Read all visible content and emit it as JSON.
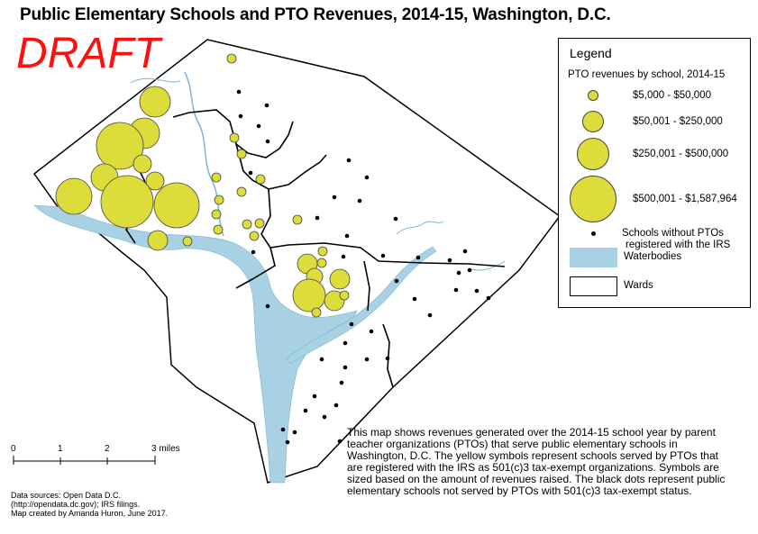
{
  "title": "Public Elementary Schools and PTO Revenues, 2014-15, Washington, D.C.",
  "draft": "DRAFT",
  "legend": {
    "title": "Legend",
    "subtitle": "PTO revenues by school, 2014-15",
    "classes": [
      {
        "label": "$5,000 - $50,000"
      },
      {
        "label": "$50,001 - $250,000"
      },
      {
        "label": "$250,001 - $500,000"
      },
      {
        "label": "$500,001 - $1,587,964"
      }
    ],
    "no_pto_label_1": "Schools without PTOs",
    "no_pto_label_2": "registered with the IRS",
    "water_label": "Waterbodies",
    "wards_label": "Wards"
  },
  "scale_bar": {
    "labels": [
      "0",
      "1",
      "2",
      "3 miles"
    ]
  },
  "description": "This map shows revenues generated over the 2014-15 school year by parent teacher organizations (PTOs) that serve public elementary schools in Washington, D.C. The yellow symbols represent schools served by PTOs that are registered with the IRS as 501(c)3 tax-exempt organizations. Symbols are sized based on the amount of revenues raised. The black dots represent public elementary schools not served by PTOs with 501(c)3 tax-exempt status.",
  "sources": {
    "line1": "Data sources: Open Data D.C.",
    "line2": "(http://opendata.dc.gov); IRS filings.",
    "line3": "Map created by Amanda Huron, June 2017."
  },
  "colors": {
    "pto_symbol": "#dcdc3a",
    "water": "#a8d1e4",
    "no_pto_dot": "#000000",
    "draft": "#ff1010"
  }
}
